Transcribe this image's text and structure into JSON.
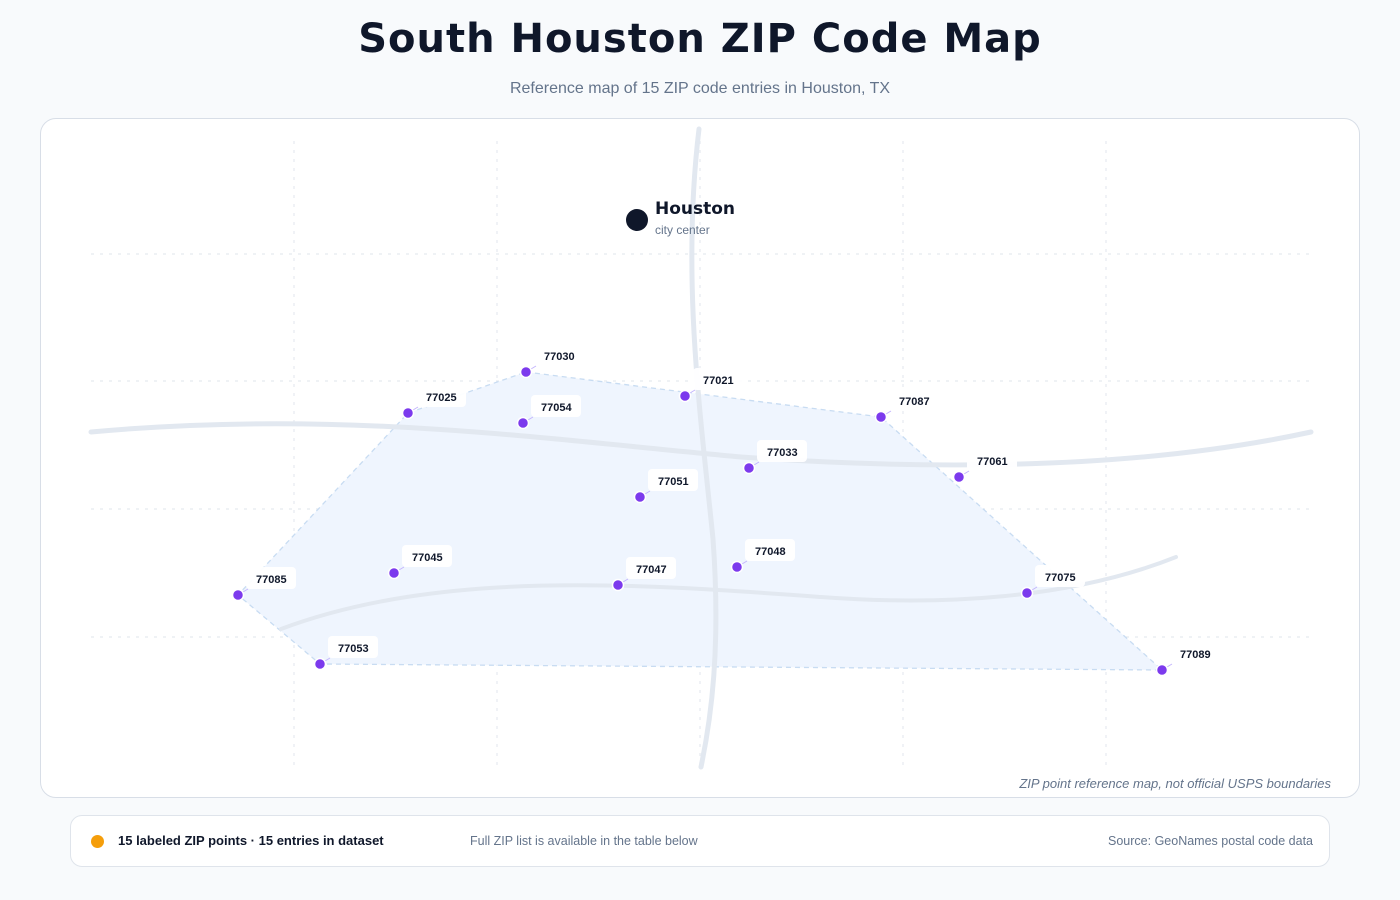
{
  "header": {
    "title": "South Houston ZIP Code Map",
    "subtitle": "Reference map of 15 ZIP code entries in Houston, TX"
  },
  "city": {
    "name": "Houston",
    "caption": "city center"
  },
  "zip_points": [
    {
      "zip": "77030"
    },
    {
      "zip": "77021"
    },
    {
      "zip": "77087"
    },
    {
      "zip": "77025"
    },
    {
      "zip": "77054"
    },
    {
      "zip": "77033"
    },
    {
      "zip": "77061"
    },
    {
      "zip": "77051"
    },
    {
      "zip": "77045"
    },
    {
      "zip": "77048"
    },
    {
      "zip": "77085"
    },
    {
      "zip": "77047"
    },
    {
      "zip": "77075"
    },
    {
      "zip": "77053"
    },
    {
      "zip": "77089"
    }
  ],
  "map": {
    "note": "ZIP point reference map, not official USPS boundaries"
  },
  "footer": {
    "count_label": "15 labeled ZIP points · 15 entries in dataset",
    "list_note": "Full ZIP list is available in the table below",
    "source": "Source: GeoNames postal code data"
  },
  "colors": {
    "point": "#7c3aed",
    "legend_dot": "#f59e0b",
    "hull_fill": "#eff5fe",
    "road": "#e2e8f0",
    "city_marker": "#0f172a"
  }
}
